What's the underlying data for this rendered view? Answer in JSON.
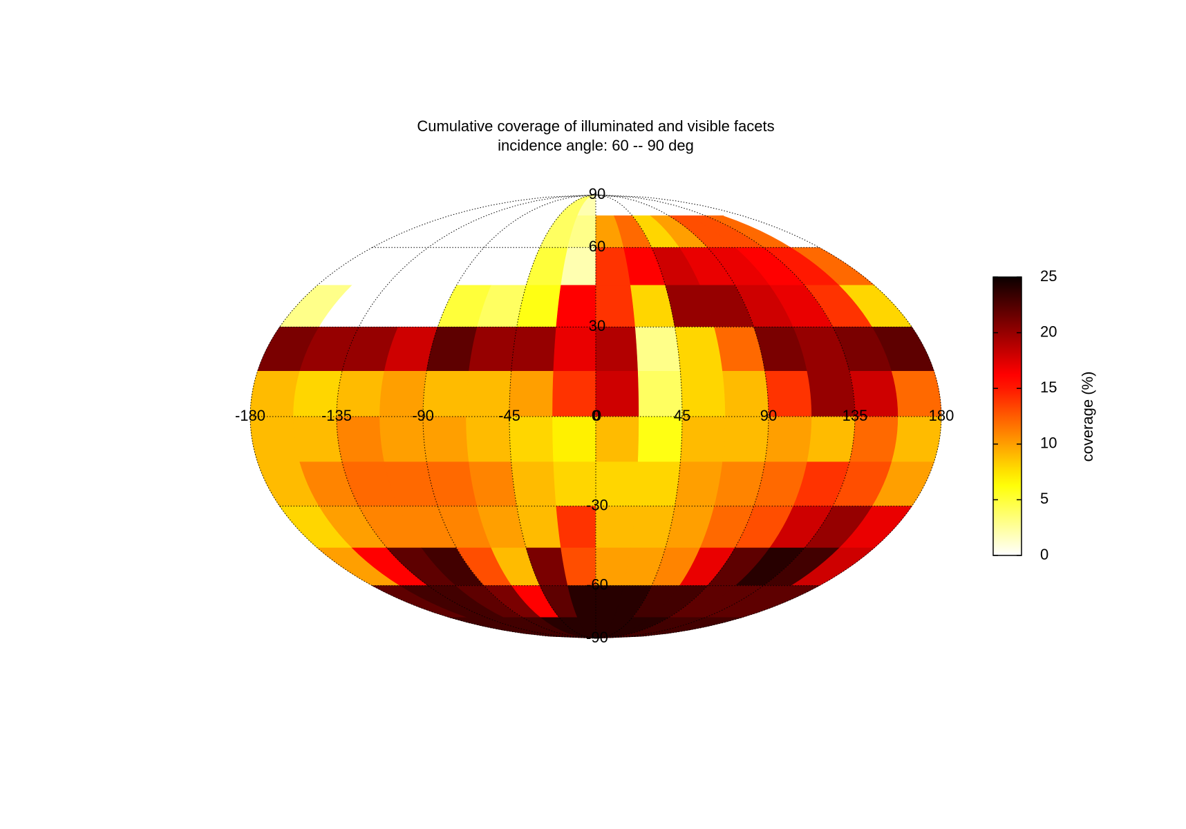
{
  "chart_data": {
    "type": "heatmap",
    "projection": "mollweide",
    "title": "Cumulative coverage of illuminated and visible facets",
    "subtitle": "incidence angle: 60 -- 90 deg",
    "x": [
      -168.75,
      -146.25,
      -123.75,
      -101.25,
      -78.75,
      -56.25,
      -33.75,
      -11.25,
      11.25,
      33.75,
      56.25,
      78.75,
      101.25,
      123.75,
      146.25,
      168.75
    ],
    "y": [
      82.5,
      67.5,
      52.5,
      37.5,
      22.5,
      7.5,
      -7.5,
      -22.5,
      -37.5,
      -52.5,
      -67.5,
      -82.5
    ],
    "z": [
      [
        0,
        0,
        0,
        0,
        0,
        0,
        4,
        2,
        0,
        0,
        0,
        0,
        0,
        0,
        0,
        0
      ],
      [
        0,
        0,
        0,
        0,
        0,
        0,
        4,
        3,
        10,
        12,
        8,
        10,
        13,
        13,
        12,
        0
      ],
      [
        0,
        0,
        0,
        0,
        0,
        0,
        5,
        2,
        14,
        16,
        18,
        17,
        17,
        16,
        15,
        12
      ],
      [
        3,
        0,
        0,
        0,
        5,
        4,
        6,
        16,
        14,
        8,
        20,
        20,
        18,
        17,
        14,
        8
      ],
      [
        21,
        20,
        20,
        18,
        22,
        20,
        20,
        17,
        19,
        3,
        8,
        12,
        21,
        20,
        21,
        22
      ],
      [
        9,
        8,
        9,
        10,
        9,
        9,
        10,
        14,
        18,
        4,
        8,
        9,
        14,
        20,
        18,
        12
      ],
      [
        9,
        9,
        11,
        10,
        10,
        9,
        8,
        7,
        9,
        6,
        9,
        9,
        10,
        9,
        12,
        9
      ],
      [
        9,
        11,
        12,
        12,
        12,
        11,
        9,
        8,
        8,
        8,
        10,
        11,
        12,
        14,
        13,
        10
      ],
      [
        8,
        10,
        11,
        11,
        11,
        10,
        9,
        14,
        9,
        9,
        10,
        12,
        13,
        18,
        20,
        17
      ],
      [
        10,
        16,
        22,
        23,
        13,
        9,
        21,
        13,
        10,
        10,
        11,
        17,
        22,
        24,
        23,
        18
      ],
      [
        22,
        23,
        23,
        22,
        21,
        16,
        22,
        24,
        24,
        24,
        23,
        23,
        22,
        22,
        22,
        22
      ],
      [
        23,
        23,
        23,
        23,
        23,
        24,
        24,
        24,
        24,
        24,
        24,
        24,
        23,
        23,
        23,
        23
      ]
    ],
    "xlim": [
      -180,
      180
    ],
    "ylim": [
      -90,
      90
    ],
    "xticks": [
      -180,
      -135,
      -90,
      -45,
      0,
      45,
      90,
      135,
      180
    ],
    "yticks": [
      -90,
      -60,
      -30,
      0,
      30,
      60,
      90
    ],
    "grid": true,
    "colormap": "hot_r",
    "clim": [
      0,
      25
    ],
    "cticks": [
      0,
      5,
      10,
      15,
      20,
      25
    ],
    "colorbar_label": "coverage (%)"
  }
}
